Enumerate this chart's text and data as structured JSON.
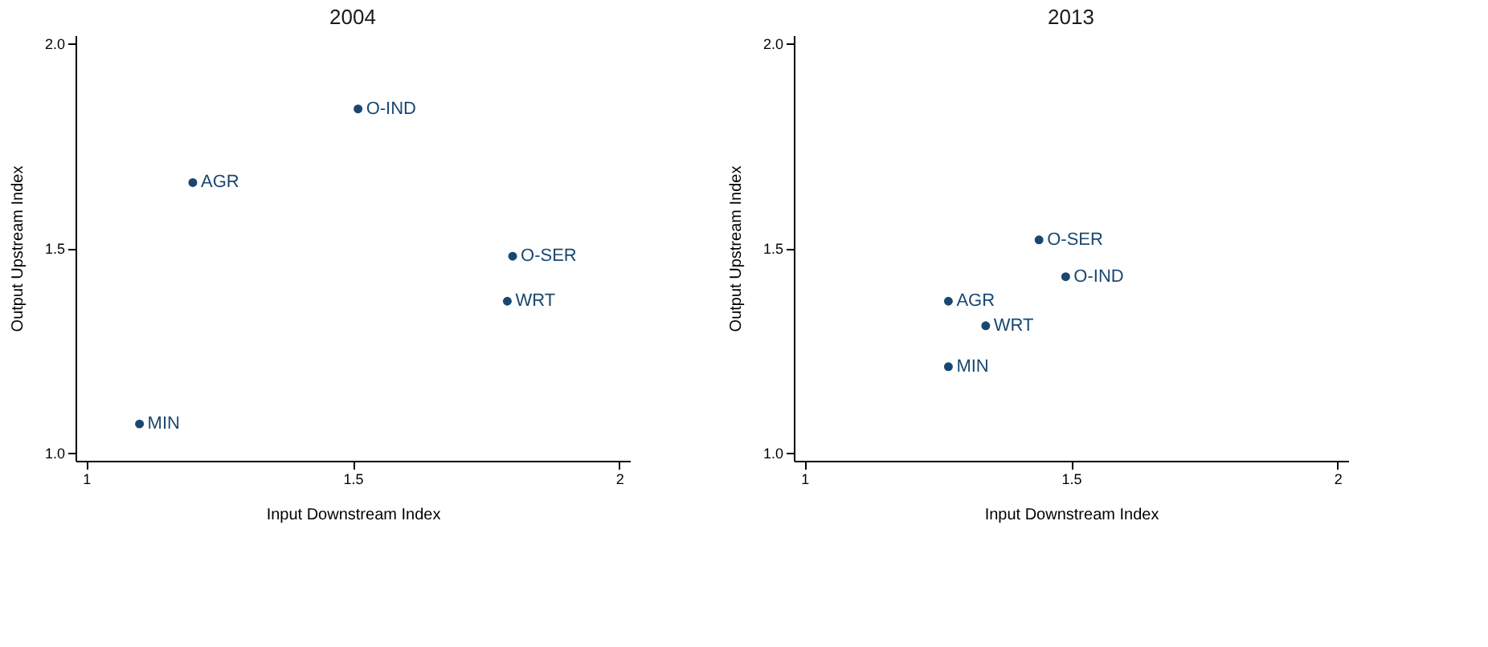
{
  "chart_data": [
    {
      "type": "scatter",
      "title": "2004",
      "xlabel": "Input Downstream Index",
      "ylabel": "Output Upstream Index",
      "xlim": [
        0.98,
        2.02
      ],
      "ylim": [
        0.98,
        2.02
      ],
      "xticks": [
        1,
        1.5,
        2
      ],
      "yticks": [
        {
          "value": 1,
          "label": "1.0"
        },
        {
          "value": 1.5,
          "label": "1.5"
        },
        {
          "value": 2,
          "label": "2.0"
        }
      ],
      "marker": "circle",
      "grid": false,
      "series": [
        {
          "name": "O-IND",
          "color": "#1a476f",
          "x": [
            1.51
          ],
          "values": [
            1.84
          ]
        },
        {
          "name": "AGR",
          "color": "#1a476f",
          "x": [
            1.2
          ],
          "values": [
            1.66
          ]
        },
        {
          "name": "O-SER",
          "color": "#1a476f",
          "x": [
            1.8
          ],
          "values": [
            1.48
          ]
        },
        {
          "name": "WRT",
          "color": "#1a476f",
          "x": [
            1.79
          ],
          "values": [
            1.37
          ]
        },
        {
          "name": "MIN",
          "color": "#1a476f",
          "x": [
            1.1
          ],
          "values": [
            1.07
          ]
        }
      ]
    },
    {
      "type": "scatter",
      "title": "2013",
      "xlabel": "Input Downstream Index",
      "ylabel": "Output Upstream Index",
      "xlim": [
        0.98,
        2.02
      ],
      "ylim": [
        0.98,
        2.02
      ],
      "xticks": [
        1,
        1.5,
        2
      ],
      "yticks": [
        {
          "value": 1,
          "label": "1.0"
        },
        {
          "value": 1.5,
          "label": "1.5"
        },
        {
          "value": 2,
          "label": "2.0"
        }
      ],
      "marker": "circle",
      "grid": false,
      "series": [
        {
          "name": "O-SER",
          "color": "#1a476f",
          "x": [
            1.44
          ],
          "values": [
            1.52
          ]
        },
        {
          "name": "O-IND",
          "color": "#1a476f",
          "x": [
            1.49
          ],
          "values": [
            1.43
          ]
        },
        {
          "name": "AGR",
          "color": "#1a476f",
          "x": [
            1.27
          ],
          "values": [
            1.37
          ]
        },
        {
          "name": "WRT",
          "color": "#1a476f",
          "x": [
            1.34
          ],
          "values": [
            1.31
          ]
        },
        {
          "name": "MIN",
          "color": "#1a476f",
          "x": [
            1.27
          ],
          "values": [
            1.21
          ]
        }
      ]
    }
  ]
}
